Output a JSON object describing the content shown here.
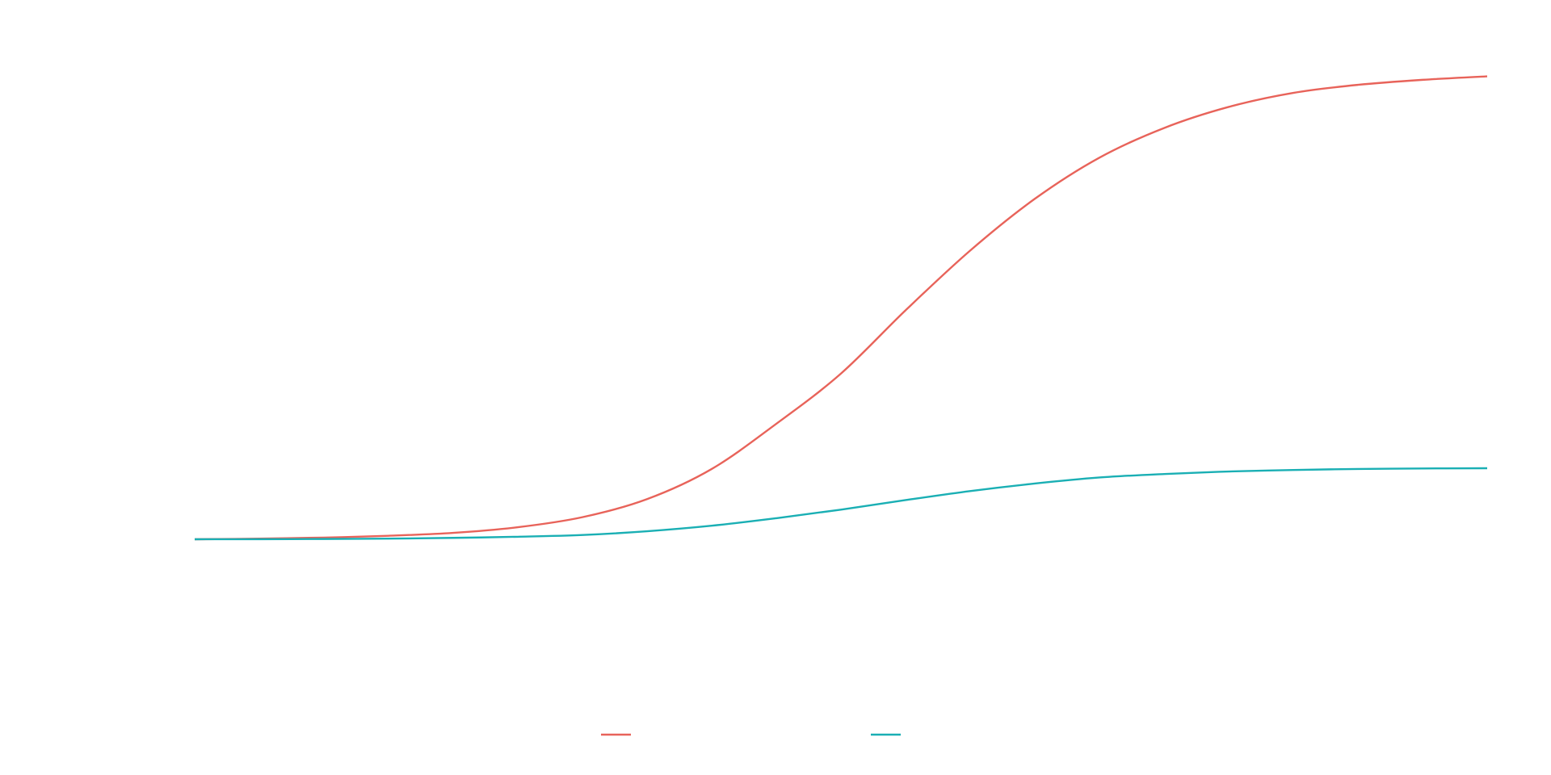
{
  "chart_data": {
    "type": "line",
    "title": "",
    "xlabel": "",
    "ylabel": "",
    "grid": false,
    "legend_position": "bottom",
    "x": [
      0,
      0.05,
      0.1,
      0.15,
      0.2,
      0.25,
      0.3,
      0.35,
      0.4,
      0.45,
      0.5,
      0.55,
      0.6,
      0.65,
      0.7,
      0.75,
      0.8,
      0.85,
      0.9,
      0.95,
      1.0
    ],
    "xlim": [
      0,
      1
    ],
    "ylim": [
      0,
      1
    ],
    "series": [
      {
        "color": "#e8635a",
        "values": [
          0.0,
          0.0013,
          0.0034,
          0.007,
          0.0128,
          0.024,
          0.044,
          0.08,
          0.14,
          0.23,
          0.33,
          0.456,
          0.575,
          0.678,
          0.76,
          0.819,
          0.861,
          0.889,
          0.905,
          0.915,
          0.922
        ]
      },
      {
        "color": "#1aafb4",
        "values": [
          0.0,
          0.0002,
          0.0006,
          0.0013,
          0.0028,
          0.005,
          0.0085,
          0.016,
          0.027,
          0.042,
          0.059,
          0.078,
          0.096,
          0.111,
          0.123,
          0.13,
          0.135,
          0.138,
          0.14,
          0.141,
          0.1415
        ]
      }
    ]
  }
}
